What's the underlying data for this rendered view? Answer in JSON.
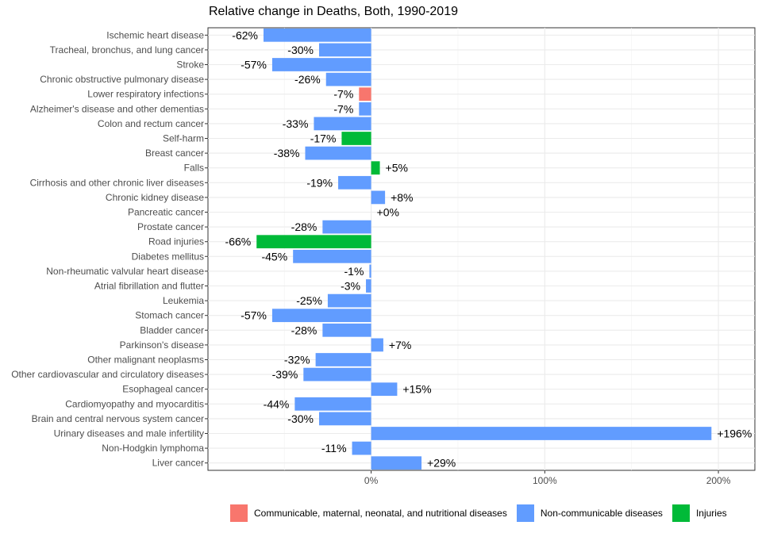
{
  "chart_data": {
    "type": "bar",
    "orientation": "horizontal",
    "title": "Relative change in Deaths, Both, 1990-2019",
    "xlabel": "",
    "ylabel": "",
    "xlim": [
      -94,
      221
    ],
    "xticks": [
      0,
      100,
      200
    ],
    "xtick_labels": [
      "0%",
      "100%",
      "200%"
    ],
    "grid": true,
    "legend_position": "bottom",
    "colors": {
      "Communicable, maternal, neonatal, and nutritional diseases": "#F8766D",
      "Non-communicable diseases": "#619CFF",
      "Injuries": "#00BA38"
    },
    "legend": [
      "Communicable, maternal, neonatal, and nutritional diseases",
      "Non-communicable diseases",
      "Injuries"
    ],
    "bars": [
      {
        "category": "Ischemic heart disease",
        "value": -62,
        "label": "-62%",
        "group": "Non-communicable diseases"
      },
      {
        "category": "Tracheal, bronchus, and lung cancer",
        "value": -30,
        "label": "-30%",
        "group": "Non-communicable diseases"
      },
      {
        "category": "Stroke",
        "value": -57,
        "label": "-57%",
        "group": "Non-communicable diseases"
      },
      {
        "category": "Chronic obstructive pulmonary disease",
        "value": -26,
        "label": "-26%",
        "group": "Non-communicable diseases"
      },
      {
        "category": "Lower respiratory infections",
        "value": -7,
        "label": "-7%",
        "group": "Communicable, maternal, neonatal, and nutritional diseases"
      },
      {
        "category": "Alzheimer's disease and other dementias",
        "value": -7,
        "label": "-7%",
        "group": "Non-communicable diseases"
      },
      {
        "category": "Colon and rectum cancer",
        "value": -33,
        "label": "-33%",
        "group": "Non-communicable diseases"
      },
      {
        "category": "Self-harm",
        "value": -17,
        "label": "-17%",
        "group": "Injuries"
      },
      {
        "category": "Breast cancer",
        "value": -38,
        "label": "-38%",
        "group": "Non-communicable diseases"
      },
      {
        "category": "Falls",
        "value": 5,
        "label": "+5%",
        "group": "Injuries"
      },
      {
        "category": "Cirrhosis and other chronic liver diseases",
        "value": -19,
        "label": "-19%",
        "group": "Non-communicable diseases"
      },
      {
        "category": "Chronic kidney disease",
        "value": 8,
        "label": "+8%",
        "group": "Non-communicable diseases"
      },
      {
        "category": "Pancreatic cancer",
        "value": 0,
        "label": "+0%",
        "group": "Non-communicable diseases"
      },
      {
        "category": "Prostate cancer",
        "value": -28,
        "label": "-28%",
        "group": "Non-communicable diseases"
      },
      {
        "category": "Road injuries",
        "value": -66,
        "label": "-66%",
        "group": "Injuries"
      },
      {
        "category": "Diabetes mellitus",
        "value": -45,
        "label": "-45%",
        "group": "Non-communicable diseases"
      },
      {
        "category": "Non-rheumatic valvular heart disease",
        "value": -1,
        "label": "-1%",
        "group": "Non-communicable diseases"
      },
      {
        "category": "Atrial fibrillation and flutter",
        "value": -3,
        "label": "-3%",
        "group": "Non-communicable diseases"
      },
      {
        "category": "Leukemia",
        "value": -25,
        "label": "-25%",
        "group": "Non-communicable diseases"
      },
      {
        "category": "Stomach cancer",
        "value": -57,
        "label": "-57%",
        "group": "Non-communicable diseases"
      },
      {
        "category": "Bladder cancer",
        "value": -28,
        "label": "-28%",
        "group": "Non-communicable diseases"
      },
      {
        "category": "Parkinson's disease",
        "value": 7,
        "label": "+7%",
        "group": "Non-communicable diseases"
      },
      {
        "category": "Other malignant neoplasms",
        "value": -32,
        "label": "-32%",
        "group": "Non-communicable diseases"
      },
      {
        "category": "Other cardiovascular and circulatory diseases",
        "value": -39,
        "label": "-39%",
        "group": "Non-communicable diseases"
      },
      {
        "category": "Esophageal cancer",
        "value": 15,
        "label": "+15%",
        "group": "Non-communicable diseases"
      },
      {
        "category": "Cardiomyopathy and myocarditis",
        "value": -44,
        "label": "-44%",
        "group": "Non-communicable diseases"
      },
      {
        "category": "Brain and central nervous system cancer",
        "value": -30,
        "label": "-30%",
        "group": "Non-communicable diseases"
      },
      {
        "category": "Urinary diseases and male infertility",
        "value": 196,
        "label": "+196%",
        "group": "Non-communicable diseases"
      },
      {
        "category": "Non-Hodgkin lymphoma",
        "value": -11,
        "label": "-11%",
        "group": "Non-communicable diseases"
      },
      {
        "category": "Liver cancer",
        "value": 29,
        "label": "+29%",
        "group": "Non-communicable diseases"
      }
    ]
  }
}
